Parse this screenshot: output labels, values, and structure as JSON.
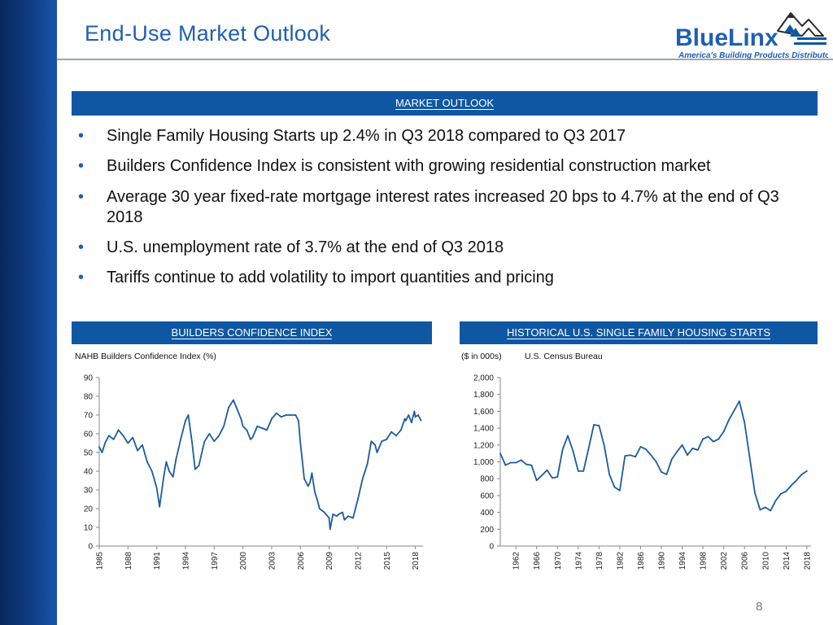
{
  "page": {
    "title": "End-Use Market Outlook",
    "slide_number": "8"
  },
  "logo": {
    "name": "BlueLinx",
    "tagline": "America's Building Products Distributor"
  },
  "market_outlook": {
    "header": "MARKET OUTLOOK",
    "bullets": [
      "Single Family Housing Starts up 2.4% in Q3 2018 compared to Q3 2017",
      "Builders Confidence Index is consistent with growing residential construction market",
      "Average 30 year fixed-rate mortgage interest rates increased 20 bps to 4.7% at the end of Q3 2018",
      "U.S. unemployment rate of 3.7% at the end of Q3 2018",
      "Tariffs continue to add volatility to import quantities and pricing"
    ]
  },
  "bci_panel": {
    "header": "BUILDERS CONFIDENCE INDEX",
    "caption": "NAHB Builders Confidence Index (%)"
  },
  "hs_panel": {
    "header": "HISTORICAL U.S. SINGLE FAMILY HOUSING STARTS",
    "caption_units": "($ in 000s)",
    "caption_source": "U.S. Census Bureau"
  },
  "chart_data": [
    {
      "type": "line",
      "color": "#1b5c9e",
      "ylim": [
        0,
        90
      ],
      "y_ticks": [
        "0",
        "10",
        "20",
        "30",
        "40",
        "50",
        "60",
        "70",
        "80",
        "90"
      ],
      "x_ticks": [
        "1985",
        "1988",
        "1991",
        "1994",
        "1997",
        "2000",
        "2003",
        "2006",
        "2009",
        "2012",
        "2015",
        "2018"
      ],
      "xlim": [
        1985,
        2018.8
      ],
      "points": [
        [
          1985.0,
          53
        ],
        [
          1985.3,
          50
        ],
        [
          1985.6,
          55
        ],
        [
          1986.0,
          59
        ],
        [
          1986.5,
          57
        ],
        [
          1987.0,
          62
        ],
        [
          1987.5,
          59
        ],
        [
          1988.0,
          55
        ],
        [
          1988.5,
          58
        ],
        [
          1989.0,
          51
        ],
        [
          1989.5,
          54
        ],
        [
          1990.0,
          45
        ],
        [
          1990.5,
          40
        ],
        [
          1991.0,
          31
        ],
        [
          1991.3,
          21
        ],
        [
          1991.7,
          36
        ],
        [
          1992.0,
          45
        ],
        [
          1992.3,
          40
        ],
        [
          1992.7,
          37
        ],
        [
          1993.0,
          46
        ],
        [
          1993.5,
          57
        ],
        [
          1994.0,
          67
        ],
        [
          1994.3,
          70
        ],
        [
          1994.7,
          55
        ],
        [
          1995.0,
          41
        ],
        [
          1995.4,
          43
        ],
        [
          1995.8,
          52
        ],
        [
          1996.0,
          56
        ],
        [
          1996.5,
          60
        ],
        [
          1997.0,
          56
        ],
        [
          1997.5,
          59
        ],
        [
          1998.0,
          64
        ],
        [
          1998.5,
          74
        ],
        [
          1999.0,
          78
        ],
        [
          1999.4,
          73
        ],
        [
          1999.8,
          68
        ],
        [
          2000.0,
          64
        ],
        [
          2000.4,
          62
        ],
        [
          2000.8,
          57
        ],
        [
          2001.0,
          58
        ],
        [
          2001.5,
          64
        ],
        [
          2002.0,
          63
        ],
        [
          2002.5,
          62
        ],
        [
          2003.0,
          68
        ],
        [
          2003.5,
          71
        ],
        [
          2004.0,
          69
        ],
        [
          2004.5,
          70
        ],
        [
          2005.0,
          70
        ],
        [
          2005.5,
          70
        ],
        [
          2005.8,
          67
        ],
        [
          2006.0,
          55
        ],
        [
          2006.4,
          36
        ],
        [
          2006.8,
          32
        ],
        [
          2007.0,
          34
        ],
        [
          2007.2,
          39
        ],
        [
          2007.5,
          29
        ],
        [
          2007.8,
          24
        ],
        [
          2008.0,
          20
        ],
        [
          2008.5,
          18
        ],
        [
          2009.0,
          15
        ],
        [
          2009.1,
          9
        ],
        [
          2009.4,
          17
        ],
        [
          2009.8,
          16
        ],
        [
          2010.0,
          17
        ],
        [
          2010.4,
          18
        ],
        [
          2010.6,
          14
        ],
        [
          2011.0,
          16
        ],
        [
          2011.5,
          15
        ],
        [
          2012.0,
          25
        ],
        [
          2012.5,
          36
        ],
        [
          2013.0,
          44
        ],
        [
          2013.4,
          56
        ],
        [
          2013.8,
          54
        ],
        [
          2014.0,
          50
        ],
        [
          2014.5,
          56
        ],
        [
          2015.0,
          57
        ],
        [
          2015.5,
          61
        ],
        [
          2016.0,
          59
        ],
        [
          2016.5,
          62
        ],
        [
          2016.9,
          68
        ],
        [
          2017.0,
          67
        ],
        [
          2017.3,
          70
        ],
        [
          2017.6,
          66
        ],
        [
          2017.9,
          72
        ],
        [
          2018.0,
          69
        ],
        [
          2018.3,
          70
        ],
        [
          2018.6,
          67
        ]
      ]
    },
    {
      "type": "line",
      "color": "#1b5c9e",
      "ylim": [
        0,
        2000
      ],
      "y_ticks": [
        "0",
        "200",
        "400",
        "600",
        "800",
        "1,000",
        "1,200",
        "1,400",
        "1,600",
        "1,800",
        "2,000"
      ],
      "x_ticks": [
        "1962",
        "1966",
        "1970",
        "1974",
        "1978",
        "1982",
        "1986",
        "1990",
        "1994",
        "1998",
        "2002",
        "2006",
        "2010",
        "2014",
        "2018"
      ],
      "xlim": [
        1959,
        2018.8
      ],
      "points": [
        [
          1959.0,
          1100
        ],
        [
          1960.0,
          960
        ],
        [
          1961.0,
          990
        ],
        [
          1962.0,
          990
        ],
        [
          1963.0,
          1020
        ],
        [
          1964.0,
          970
        ],
        [
          1965.0,
          960
        ],
        [
          1966.0,
          780
        ],
        [
          1967.0,
          840
        ],
        [
          1968.0,
          900
        ],
        [
          1969.0,
          810
        ],
        [
          1970.0,
          820
        ],
        [
          1971.0,
          1150
        ],
        [
          1972.0,
          1310
        ],
        [
          1973.0,
          1130
        ],
        [
          1974.0,
          890
        ],
        [
          1975.0,
          890
        ],
        [
          1976.0,
          1160
        ],
        [
          1977.0,
          1440
        ],
        [
          1978.0,
          1430
        ],
        [
          1979.0,
          1190
        ],
        [
          1980.0,
          850
        ],
        [
          1981.0,
          700
        ],
        [
          1982.0,
          660
        ],
        [
          1983.0,
          1070
        ],
        [
          1984.0,
          1080
        ],
        [
          1985.0,
          1060
        ],
        [
          1986.0,
          1180
        ],
        [
          1987.0,
          1150
        ],
        [
          1988.0,
          1080
        ],
        [
          1989.0,
          1000
        ],
        [
          1990.0,
          880
        ],
        [
          1991.0,
          850
        ],
        [
          1992.0,
          1030
        ],
        [
          1993.0,
          1120
        ],
        [
          1994.0,
          1200
        ],
        [
          1995.0,
          1080
        ],
        [
          1996.0,
          1160
        ],
        [
          1997.0,
          1140
        ],
        [
          1998.0,
          1270
        ],
        [
          1999.0,
          1300
        ],
        [
          2000.0,
          1240
        ],
        [
          2001.0,
          1270
        ],
        [
          2002.0,
          1360
        ],
        [
          2003.0,
          1500
        ],
        [
          2004.0,
          1610
        ],
        [
          2005.0,
          1720
        ],
        [
          2006.0,
          1470
        ],
        [
          2007.0,
          1050
        ],
        [
          2008.0,
          630
        ],
        [
          2009.0,
          430
        ],
        [
          2010.0,
          460
        ],
        [
          2011.0,
          420
        ],
        [
          2012.0,
          540
        ],
        [
          2013.0,
          620
        ],
        [
          2014.0,
          650
        ],
        [
          2015.0,
          720
        ],
        [
          2016.0,
          780
        ],
        [
          2017.0,
          850
        ],
        [
          2018.0,
          890
        ]
      ]
    }
  ]
}
